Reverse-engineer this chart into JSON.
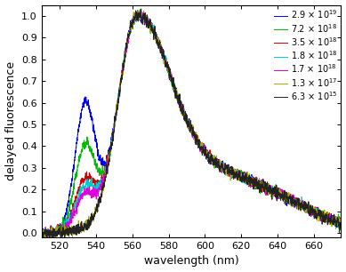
{
  "title": "",
  "xlabel": "wavelength (nm)",
  "ylabel": "delayed fluorescence",
  "xlim": [
    510,
    675
  ],
  "ylim": [
    -0.02,
    1.05
  ],
  "xticks": [
    520,
    540,
    560,
    580,
    600,
    620,
    640,
    660
  ],
  "yticks": [
    0,
    0.1,
    0.2,
    0.3,
    0.4,
    0.5,
    0.6,
    0.7,
    0.8,
    0.9,
    1.0
  ],
  "series": [
    {
      "color": "#0000ff",
      "peak530": 0.57,
      "noise": 0.018,
      "seed": 1
    },
    {
      "color": "#00bb00",
      "peak530": 0.38,
      "noise": 0.018,
      "seed": 2
    },
    {
      "color": "#cc0000",
      "peak530": 0.22,
      "noise": 0.018,
      "seed": 3
    },
    {
      "color": "#00cccc",
      "peak530": 0.19,
      "noise": 0.018,
      "seed": 4
    },
    {
      "color": "#dd00dd",
      "peak530": 0.15,
      "noise": 0.018,
      "seed": 5
    },
    {
      "color": "#aaaa00",
      "peak530": 0.0,
      "noise": 0.02,
      "seed": 6
    },
    {
      "color": "#222222",
      "peak530": 0.0,
      "noise": 0.022,
      "seed": 7
    }
  ],
  "legend_labels": [
    "2.9 × 10$^{19}$",
    "7.2 × 10$^{18}$",
    "3.5 × 10$^{18}$",
    "1.8 × 10$^{18}$",
    "1.7 × 10$^{18}$",
    "1.3 × 10$^{17}$",
    "6.3 × 10$^{15}$"
  ]
}
